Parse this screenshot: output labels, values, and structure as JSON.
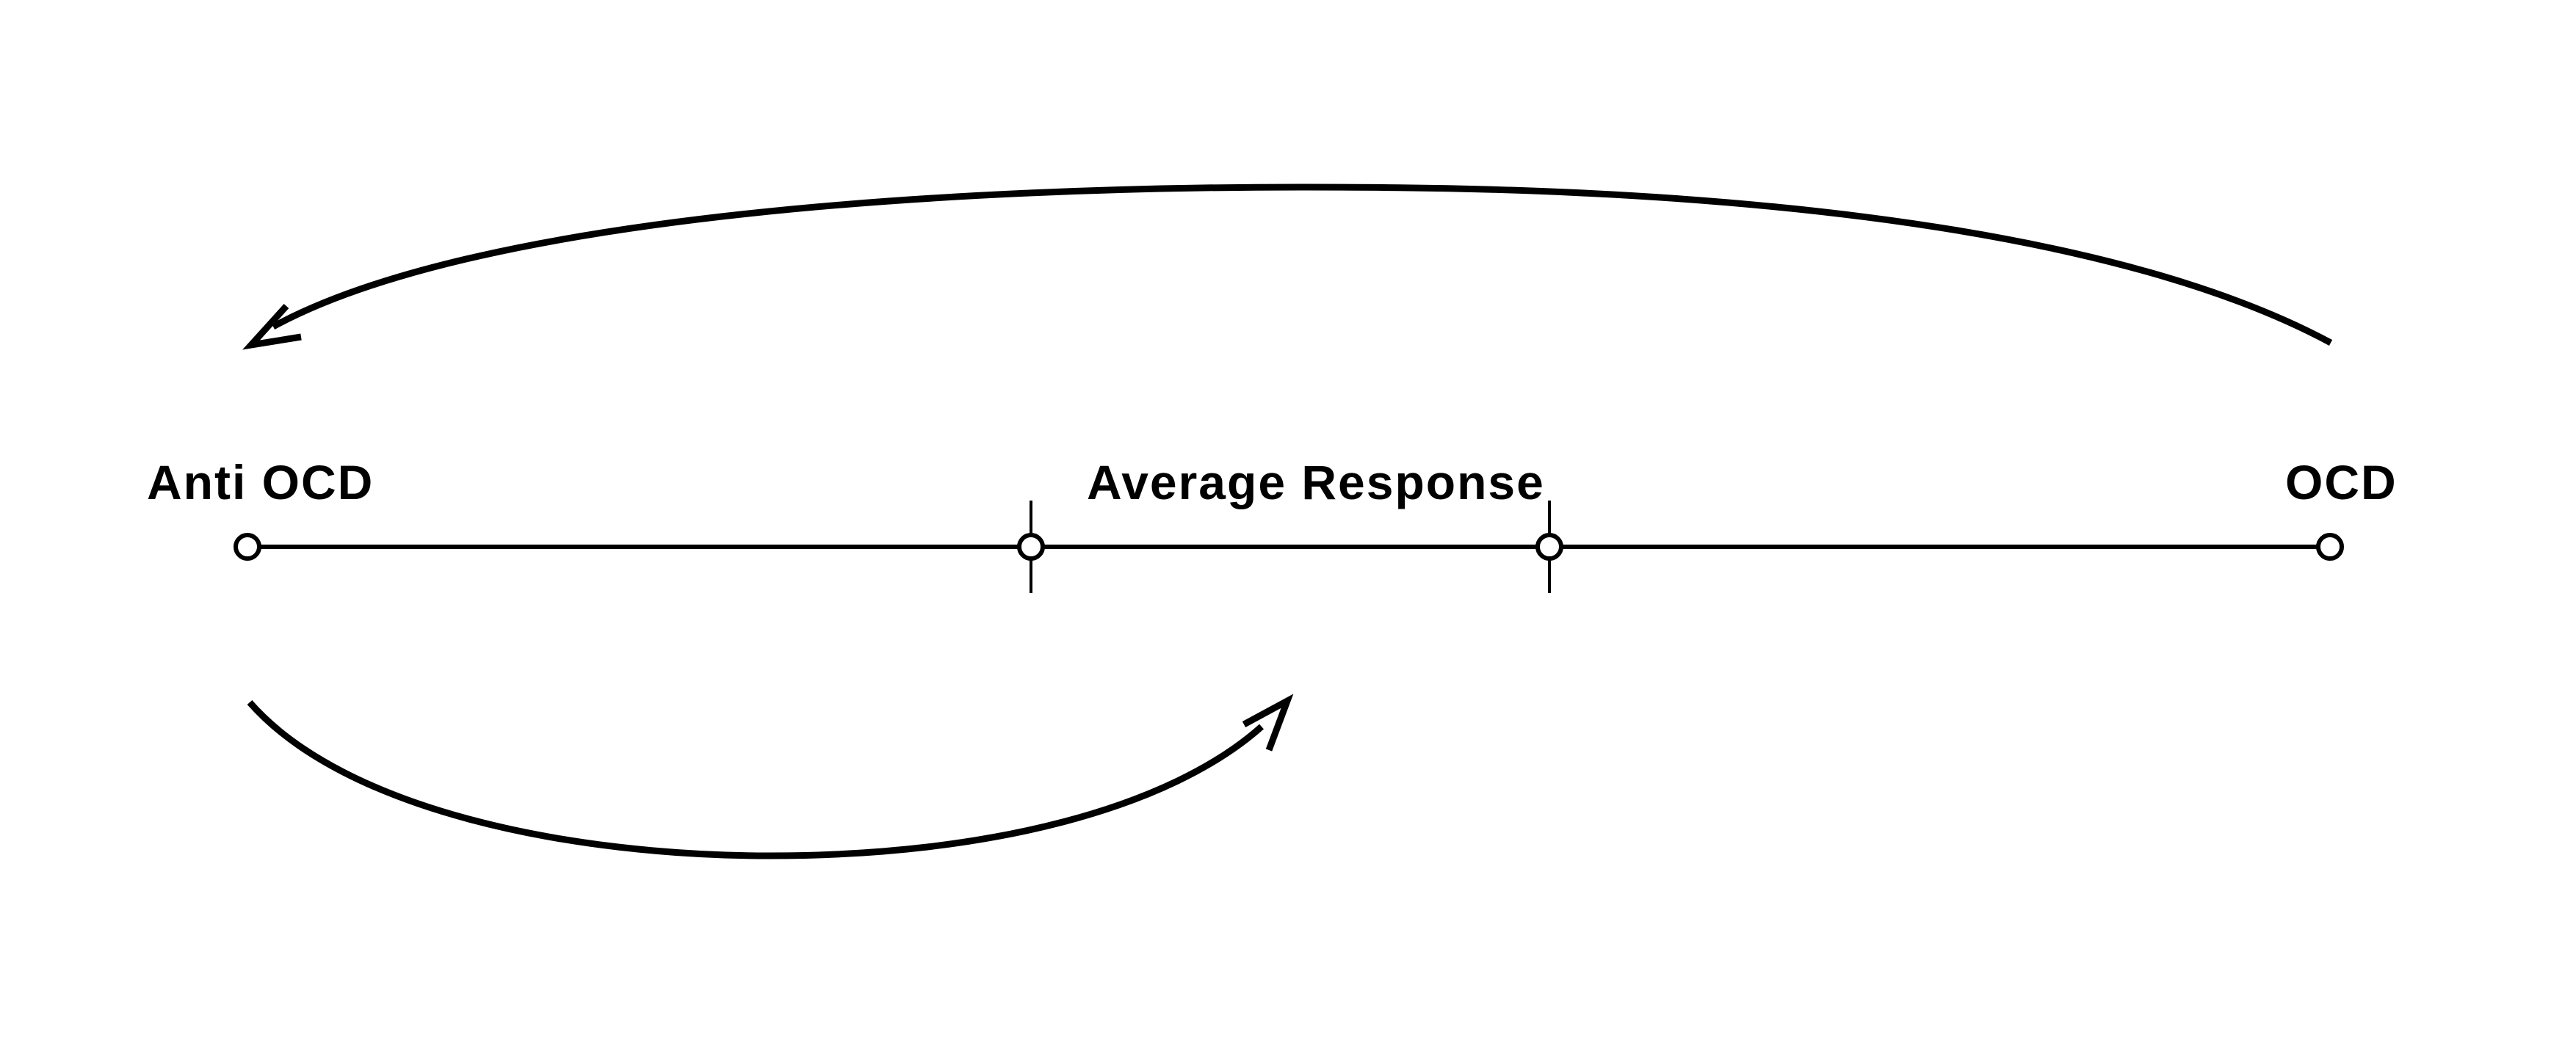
{
  "diagram": {
    "labels": {
      "left": "Anti OCD",
      "middle": "Average Response",
      "right": "OCD"
    },
    "stroke_color": "#000000",
    "background_color": "#ffffff",
    "nodes": [
      "anti-ocd-node",
      "average-left-node",
      "average-right-node",
      "ocd-node"
    ],
    "arrows": [
      {
        "from": "OCD",
        "to": "Anti OCD"
      },
      {
        "from": "Anti OCD",
        "to": "Average Response"
      }
    ]
  }
}
